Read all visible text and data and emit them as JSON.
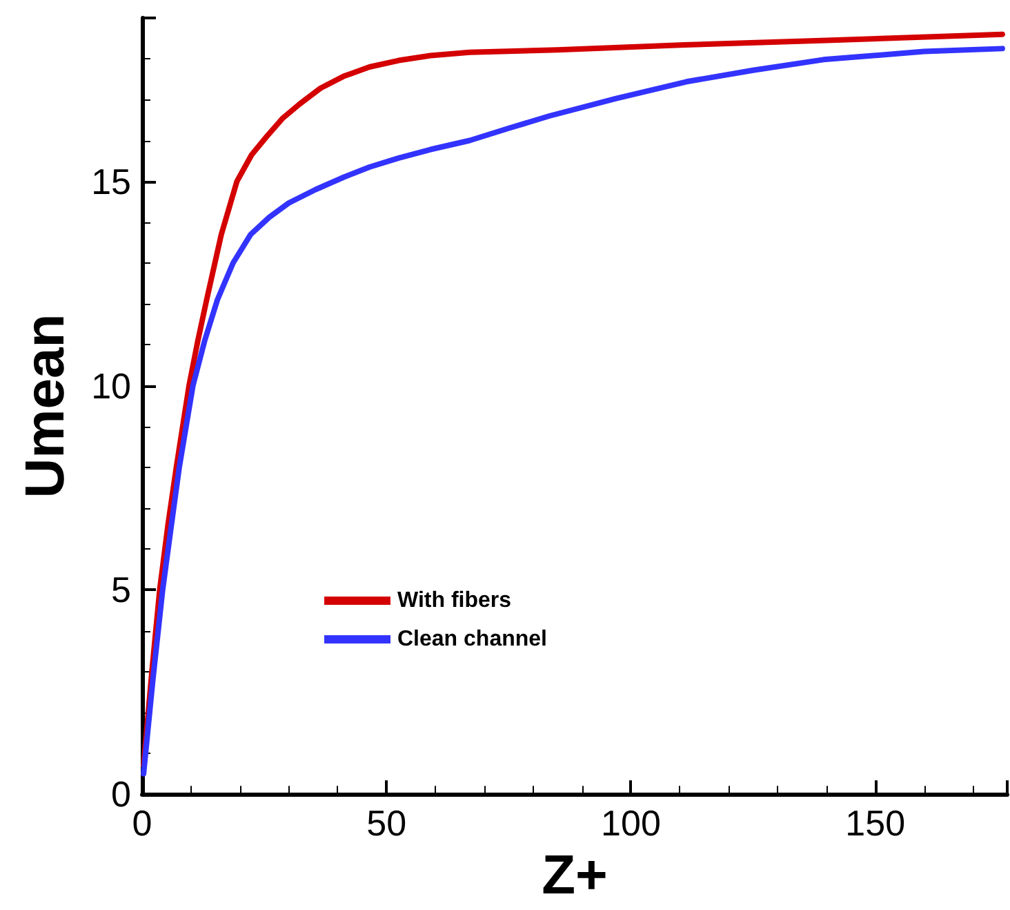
{
  "chart_data": {
    "type": "line",
    "xlabel": "Z+",
    "ylabel": "Umean",
    "xlim": [
      0,
      177
    ],
    "xticks": [
      0,
      50,
      100,
      150
    ],
    "ylim": [
      0,
      19
    ],
    "yticks": [
      0,
      5,
      10,
      15
    ],
    "grid": false,
    "legend": "bottom",
    "marker": "none",
    "line_style": "solid",
    "series": [
      {
        "name": "With fibers",
        "color": "#d40000",
        "x": [
          0.3,
          2,
          3.6,
          5.3,
          7.0,
          9.6,
          11.4,
          13.2,
          16.2,
          19.4,
          22.4,
          25.5,
          28.8,
          32.3,
          36.5,
          41.2,
          46.5,
          52.5,
          59,
          67,
          85,
          111,
          140,
          176
        ],
        "values": [
          0.7,
          3.0,
          5,
          6.6,
          8.0,
          10,
          11.1,
          12.1,
          13.7,
          15,
          15.65,
          16.1,
          16.55,
          16.9,
          17.28,
          17.57,
          17.8,
          17.96,
          18.08,
          18.16,
          18.22,
          18.34,
          18.45,
          18.6
        ]
      },
      {
        "name": "Clean channel",
        "color": "#3333ff",
        "x": [
          0.3,
          2.2,
          4.2,
          6,
          7.6,
          10.4,
          12.8,
          15.4,
          18.6,
          22.2,
          26,
          30,
          35.5,
          41.2,
          46.5,
          52.5,
          59,
          67,
          75,
          83.3,
          97,
          111.4,
          125,
          139.4,
          160,
          176
        ],
        "values": [
          0.5,
          2.8,
          5,
          6.6,
          8.0,
          10,
          11.1,
          12.1,
          13.0,
          13.7,
          14.12,
          14.47,
          14.8,
          15.1,
          15.35,
          15.57,
          15.78,
          16.0,
          16.3,
          16.6,
          17.03,
          17.44,
          17.72,
          17.98,
          18.18,
          18.25
        ]
      }
    ]
  }
}
